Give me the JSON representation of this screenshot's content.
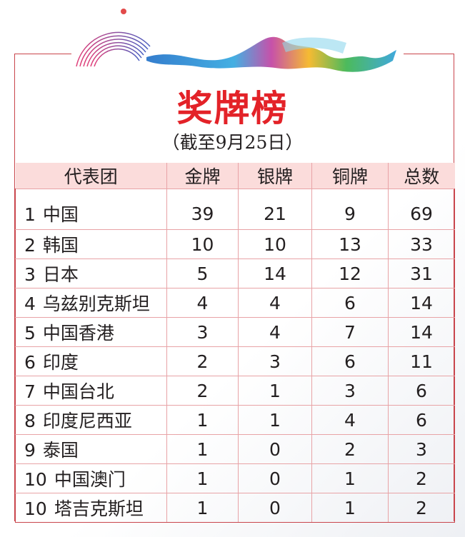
{
  "title": "奖牌榜",
  "subtitle": "（截至9月25日）",
  "colors": {
    "title": "#e32228",
    "header_bg": "#fbdcdb",
    "border": "#c9454c"
  },
  "table": {
    "headers": [
      "代表团",
      "金牌",
      "银牌",
      "铜牌",
      "总数"
    ],
    "rows": [
      {
        "rank": "1",
        "team": "中国",
        "gold": "39",
        "silver": "21",
        "bronze": "9",
        "total": "69"
      },
      {
        "rank": "2",
        "team": "韩国",
        "gold": "10",
        "silver": "10",
        "bronze": "13",
        "total": "33"
      },
      {
        "rank": "3",
        "team": "日本",
        "gold": "5",
        "silver": "14",
        "bronze": "12",
        "total": "31"
      },
      {
        "rank": "4",
        "team": "乌兹别克斯坦",
        "gold": "4",
        "silver": "4",
        "bronze": "6",
        "total": "14"
      },
      {
        "rank": "5",
        "team": "中国香港",
        "gold": "3",
        "silver": "4",
        "bronze": "7",
        "total": "14"
      },
      {
        "rank": "6",
        "team": "印度",
        "gold": "2",
        "silver": "3",
        "bronze": "6",
        "total": "11"
      },
      {
        "rank": "7",
        "team": "中国台北",
        "gold": "2",
        "silver": "1",
        "bronze": "3",
        "total": "6"
      },
      {
        "rank": "8",
        "team": "印度尼西亚",
        "gold": "1",
        "silver": "1",
        "bronze": "4",
        "total": "6"
      },
      {
        "rank": "9",
        "team": "泰国",
        "gold": "1",
        "silver": "0",
        "bronze": "2",
        "total": "3"
      },
      {
        "rank": "10",
        "team": "中国澳门",
        "gold": "1",
        "silver": "0",
        "bronze": "1",
        "total": "2"
      },
      {
        "rank": "10",
        "team": "塔吉克斯坦",
        "gold": "1",
        "silver": "0",
        "bronze": "1",
        "total": "2"
      }
    ]
  }
}
